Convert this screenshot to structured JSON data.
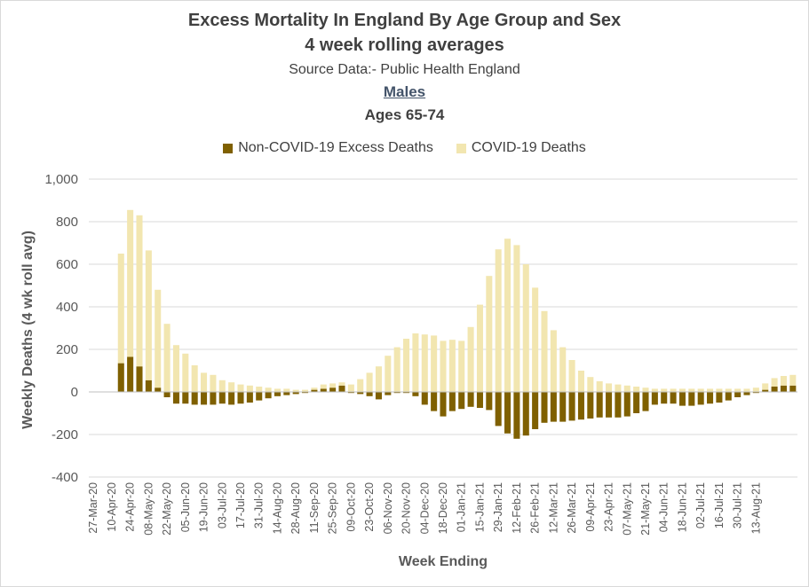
{
  "chart_data": {
    "type": "bar",
    "stacked": true,
    "title": "Excess Mortality In England By Age Group and Sex",
    "subtitle": "4 week rolling averages",
    "source": "Source Data:- Public Health England",
    "sex": "Males",
    "age_group": "Ages 65-74",
    "xlabel": "Week Ending",
    "ylabel": "Weekly Deaths (4 wk roll avg)",
    "ylim": [
      -400,
      1000
    ],
    "yticks": [
      "1,000",
      "800",
      "600",
      "400",
      "200",
      "0",
      "-200",
      "-400"
    ],
    "ytick_values": [
      1000,
      800,
      600,
      400,
      200,
      0,
      -200,
      -400
    ],
    "grid": true,
    "legend_position": "top",
    "xtick_labels": [
      "27-Mar-20",
      "10-Apr-20",
      "24-Apr-20",
      "08-May-20",
      "22-May-20",
      "05-Jun-20",
      "19-Jun-20",
      "03-Jul-20",
      "17-Jul-20",
      "31-Jul-20",
      "14-Aug-20",
      "28-Aug-20",
      "11-Sep-20",
      "25-Sep-20",
      "09-Oct-20",
      "23-Oct-20",
      "06-Nov-20",
      "20-Nov-20",
      "04-Dec-20",
      "18-Dec-20",
      "01-Jan-21",
      "15-Jan-21",
      "29-Jan-21",
      "12-Feb-21",
      "26-Feb-21",
      "12-Mar-21",
      "26-Mar-21",
      "09-Apr-21",
      "23-Apr-21",
      "07-May-21",
      "21-May-21",
      "04-Jun-21",
      "18-Jun-21",
      "02-Jul-21",
      "16-Jul-21",
      "30-Jul-21",
      "13-Aug-21"
    ],
    "series": [
      {
        "name": "Non-COVID-19 Excess Deaths",
        "color": "#7f6000",
        "values": [
          0,
          0,
          0,
          135,
          165,
          120,
          55,
          20,
          -25,
          -55,
          -55,
          -60,
          -60,
          -60,
          -55,
          -60,
          -55,
          -50,
          -40,
          -30,
          -20,
          -15,
          -10,
          -5,
          10,
          15,
          20,
          30,
          -5,
          -10,
          -20,
          -35,
          -15,
          -5,
          -5,
          -20,
          -60,
          -90,
          -115,
          -90,
          -80,
          -70,
          -75,
          -85,
          -160,
          -195,
          -220,
          -205,
          -175,
          -145,
          -140,
          -140,
          -135,
          -130,
          -125,
          -120,
          -120,
          -120,
          -115,
          -100,
          -90,
          -60,
          -55,
          -55,
          -65,
          -65,
          -60,
          -55,
          -50,
          -40,
          -25,
          -15,
          -5,
          10,
          25,
          30,
          30
        ]
      },
      {
        "name": "COVID-19 Deaths",
        "color": "#f2e6b0",
        "values": [
          0,
          0,
          0,
          515,
          690,
          710,
          610,
          460,
          320,
          220,
          180,
          125,
          90,
          80,
          55,
          45,
          35,
          30,
          25,
          20,
          15,
          15,
          10,
          10,
          10,
          20,
          20,
          15,
          35,
          60,
          90,
          120,
          170,
          210,
          250,
          275,
          270,
          265,
          240,
          245,
          240,
          305,
          410,
          545,
          670,
          720,
          690,
          600,
          490,
          380,
          290,
          210,
          150,
          100,
          70,
          50,
          40,
          35,
          30,
          25,
          20,
          15,
          15,
          15,
          15,
          15,
          15,
          15,
          15,
          15,
          15,
          15,
          20,
          30,
          40,
          45,
          50
        ]
      }
    ]
  }
}
